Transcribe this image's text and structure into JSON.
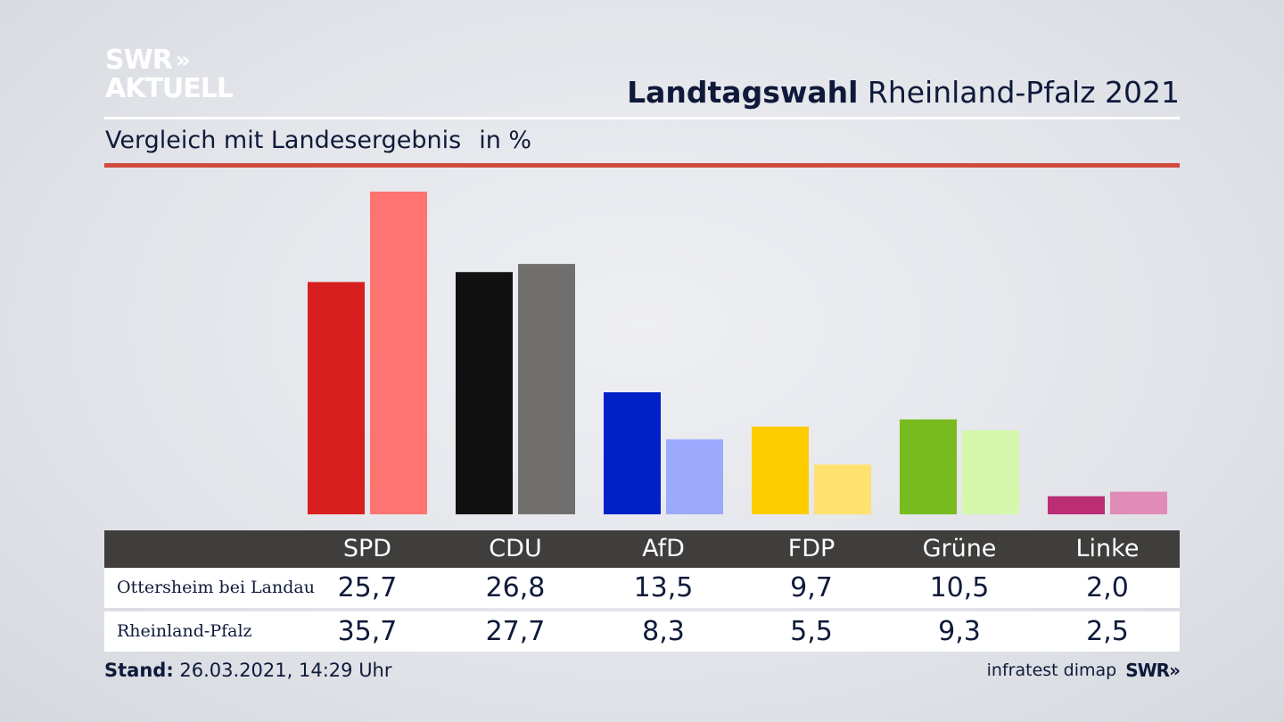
{
  "brand": {
    "line1": "SWR",
    "arrows": "»",
    "line2": "AKTUELL"
  },
  "header": {
    "title_bold": "Landtagswahl",
    "title_rest": "Rheinland-Pfalz 2021"
  },
  "subtitle": {
    "text": "Vergleich mit Landesergebnis",
    "unit": "in %"
  },
  "colors": {
    "accent_rule": "#d04b3d",
    "table_header_bg": "#3f3e3c"
  },
  "chart_data": {
    "type": "bar",
    "categories": [
      "SPD",
      "CDU",
      "AfD",
      "FDP",
      "Grüne",
      "Linke"
    ],
    "series": [
      {
        "name": "Ottersheim bei Landau",
        "values": [
          25.7,
          26.8,
          13.5,
          9.7,
          10.5,
          2.0
        ],
        "colors": [
          "#d71f1f",
          "#111111",
          "#0020c8",
          "#ffcc00",
          "#78bb1e",
          "#bb2d75"
        ]
      },
      {
        "name": "Rheinland-Pfalz",
        "values": [
          35.7,
          27.7,
          8.3,
          5.5,
          9.3,
          2.5
        ],
        "colors": [
          "#ff7470",
          "#716f6d",
          "#9caafe",
          "#ffe170",
          "#d4f7ab",
          "#e08bb8"
        ]
      }
    ],
    "ylim": [
      0,
      35.7
    ],
    "grid": false,
    "legend": "table-below"
  },
  "table": {
    "headers": [
      "SPD",
      "CDU",
      "AfD",
      "FDP",
      "Grüne",
      "Linke"
    ],
    "rows": [
      {
        "label": "Ottersheim bei Landau",
        "values": [
          "25,7",
          "26,8",
          "13,5",
          "9,7",
          "10,5",
          "2,0"
        ]
      },
      {
        "label": "Rheinland-Pfalz",
        "values": [
          "35,7",
          "27,7",
          "8,3",
          "5,5",
          "9,3",
          "2,5"
        ]
      }
    ]
  },
  "footer": {
    "stand_label": "Stand:",
    "stand_value": "26.03.2021, 14:29 Uhr",
    "source": "infratest dimap",
    "brand": "SWR",
    "brand_arrows": "»"
  }
}
